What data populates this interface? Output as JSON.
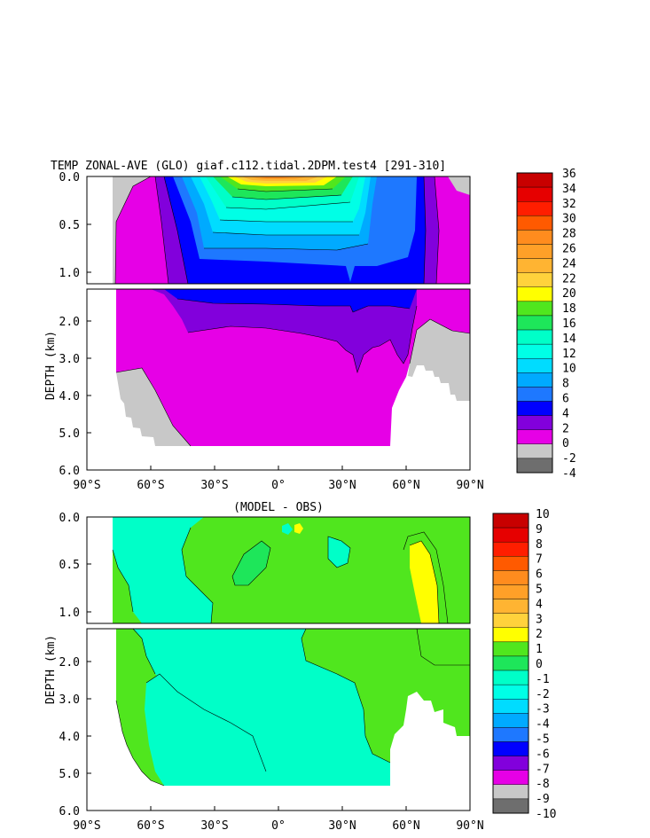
{
  "chart_data": [
    {
      "type": "heatmap",
      "title": "TEMP ZONAL-AVE (GLO) giaf.c112.tidal.2DPM.test4 [291-310]",
      "ylabel": "DEPTH (km)",
      "x_ticks": [
        "90°S",
        "60°S",
        "30°S",
        "0°",
        "30°N",
        "60°N",
        "90°N"
      ],
      "y_ticks_upper": [
        "0.0",
        "0.5",
        "1.0"
      ],
      "y_ticks_lower": [
        "2.0",
        "3.0",
        "4.0",
        "5.0",
        "6.0"
      ],
      "colorbar_labels": [
        "36",
        "34",
        "32",
        "30",
        "28",
        "26",
        "24",
        "22",
        "20",
        "18",
        "16",
        "14",
        "12",
        "10",
        "8",
        "6",
        "4",
        "2",
        "0",
        "-2",
        "-4"
      ],
      "colorbar_colors": [
        "#c80000",
        "#e60000",
        "#ff1e00",
        "#ff5a00",
        "#ff8c1e",
        "#ffa028",
        "#ffb432",
        "#ffd23c",
        "#ffff00",
        "#50e61e",
        "#1ee65a",
        "#00ffc8",
        "#00ffe6",
        "#00dcff",
        "#00aaff",
        "#1e78ff",
        "#0000ff",
        "#8200dc",
        "#e600e6",
        "#c8c8c8",
        "#6e6e6e"
      ]
    },
    {
      "type": "heatmap",
      "title": "(MODEL - OBS)",
      "ylabel": "DEPTH (km)",
      "x_ticks": [
        "90°S",
        "60°S",
        "30°S",
        "0°",
        "30°N",
        "60°N",
        "90°N"
      ],
      "y_ticks_upper": [
        "0.0",
        "0.5",
        "1.0"
      ],
      "y_ticks_lower": [
        "2.0",
        "3.0",
        "4.0",
        "5.0",
        "6.0"
      ],
      "colorbar_labels": [
        "10",
        "9",
        "8",
        "7",
        "6",
        "5",
        "4",
        "3",
        "2",
        "1",
        "0",
        "-1",
        "-2",
        "-3",
        "-4",
        "-5",
        "-6",
        "-7",
        "-8",
        "-9",
        "-10"
      ],
      "colorbar_colors": [
        "#c80000",
        "#e60000",
        "#ff1e00",
        "#ff5a00",
        "#ff8c1e",
        "#ffa028",
        "#ffb432",
        "#ffd23c",
        "#ffff00",
        "#50e61e",
        "#1ee65a",
        "#00ffc8",
        "#00ffe6",
        "#00dcff",
        "#00aaff",
        "#1e78ff",
        "#0000ff",
        "#8200dc",
        "#e600e6",
        "#c8c8c8",
        "#6e6e6e"
      ]
    }
  ]
}
